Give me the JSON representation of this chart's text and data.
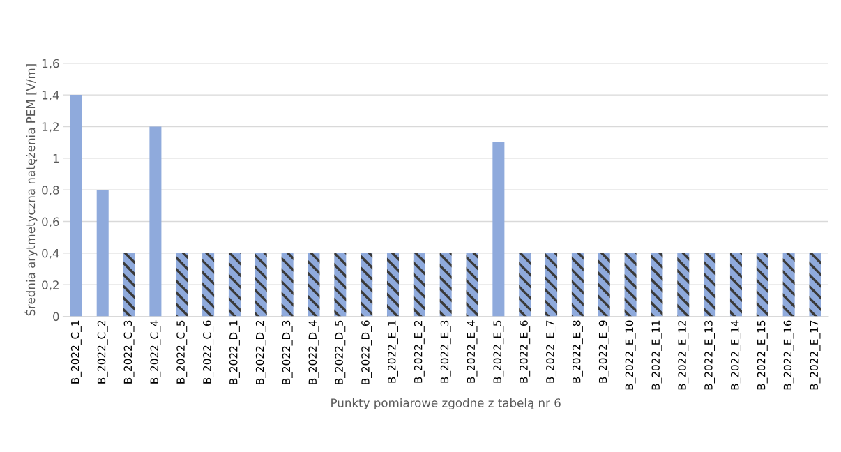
{
  "chart_data": {
    "type": "bar",
    "ylabel": "Średnia arytmetyczna natężenia PEM [V/m]",
    "xlabel": "Punkty pomiarowe zgodne z tabelą nr 6",
    "categories": [
      "B_2022_C_1",
      "B_2022_C_2",
      "B_2022_C_3",
      "B_2022_C_4",
      "B_2022_C_5",
      "B_2022_C_6",
      "B_2022_D_1",
      "B_2022_D_2",
      "B_2022_D_3",
      "B_2022_D_4",
      "B_2022_D_5",
      "B_2022_D_6",
      "B_2022_E_1",
      "B_2022_E_2",
      "B_2022_E_3",
      "B_2022_E_4",
      "B_2022_E_5",
      "B_2022_E_6",
      "B_2022_E_7",
      "B_2022_E_8",
      "B_2022_E_9",
      "B_2022_E_10",
      "B_2022_E_11",
      "B_2022_E_12",
      "B_2022_E_13",
      "B_2022_E_14",
      "B_2022_E_15",
      "B_2022_E_16",
      "B_2022_E_17"
    ],
    "values": [
      1.4,
      0.8,
      0.4,
      1.2,
      0.4,
      0.4,
      0.4,
      0.4,
      0.4,
      0.4,
      0.4,
      0.4,
      0.4,
      0.4,
      0.4,
      0.4,
      1.1,
      0.4,
      0.4,
      0.4,
      0.4,
      0.4,
      0.4,
      0.4,
      0.4,
      0.4,
      0.4,
      0.4,
      0.4
    ],
    "color": "#8faadc",
    "colors": [
      "#8faadc",
      "#8faadc",
      "#3a3a3a",
      "#8faadc",
      "#3a3a3a",
      "#3a3a3a",
      "#3a3a3a",
      "#3a3a3a",
      "#3a3a3a",
      "#3a3a3a",
      "#3a3a3a",
      "#3a3a3a",
      "#3a3a3a",
      "#3a3a3a",
      "#3a3a3a",
      "#3a3a3a",
      "#8faadc",
      "#3a3a3a",
      "#3a3a3a",
      "#3a3a3a",
      "#3a3a3a",
      "#3a3a3a",
      "#3a3a3a",
      "#3a3a3a",
      "#3a3a3a",
      "#3a3a3a",
      "#3a3a3a",
      "#3a3a3a",
      "#3a3a3a"
    ],
    "ylim": [
      0,
      1.6
    ],
    "yticks": [
      0,
      {
        "value": 0.2,
        "label": "0,2"
      },
      {
        "value": 0.4,
        "label": "0,4"
      },
      {
        "value": 0.6,
        "label": "0,6"
      },
      {
        "value": 0.8,
        "label": "0,8"
      },
      1,
      {
        "value": 1.2,
        "label": "1,2"
      },
      {
        "value": 1.4,
        "label": "1,4"
      },
      {
        "value": 1.6,
        "label": "1,6"
      }
    ],
    "grid": "y"
  }
}
